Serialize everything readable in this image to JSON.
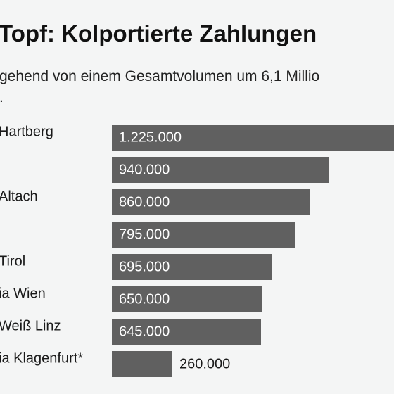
{
  "chart_data": {
    "type": "bar",
    "orientation": "horizontal",
    "title": "Topf: Kolportierte Zahlungen",
    "subtitle": "gehend von einem Gesamtvolumen um 6,1 Millio\n.",
    "categories": [
      "Hartberg",
      "",
      "Altach",
      "",
      "Tirol",
      "ia Wien",
      "Weiß Linz",
      "ia Klagenfurt*"
    ],
    "values": [
      1225000,
      940000,
      860000,
      795000,
      695000,
      650000,
      645000,
      260000
    ],
    "value_labels": [
      "1.225.000",
      "940.000",
      "860.000",
      "795.000",
      "695.000",
      "650.000",
      "645.000",
      "260.000"
    ],
    "xlim": [
      0,
      1225000
    ],
    "grid": false,
    "colors": {
      "bar": "#606060",
      "background": "#f4f5f5"
    }
  }
}
